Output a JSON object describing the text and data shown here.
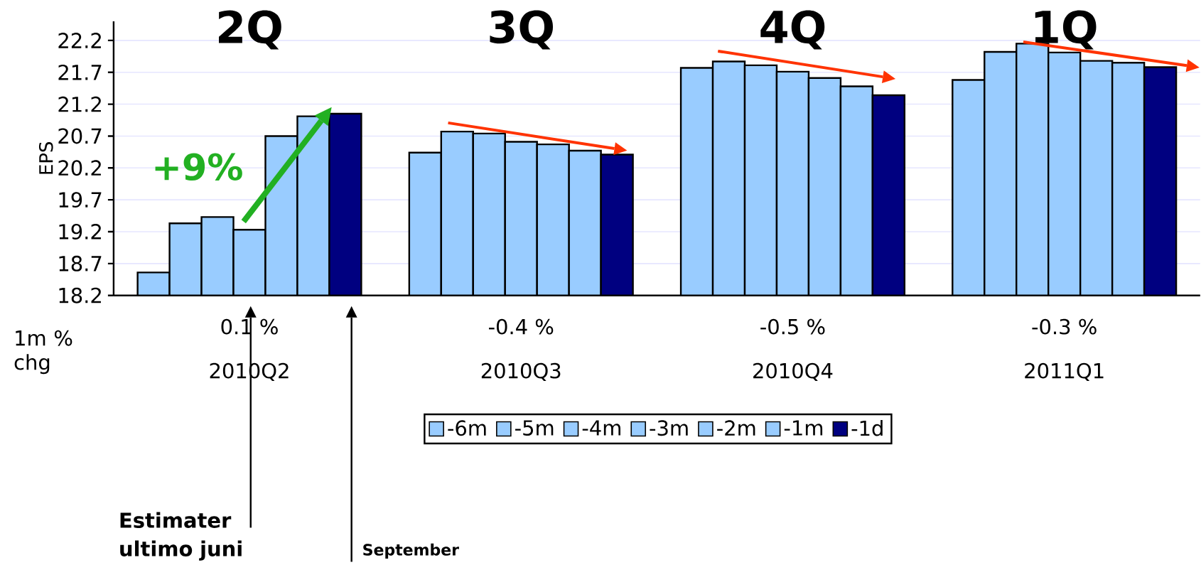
{
  "chart_data": {
    "type": "bar",
    "ylabel": "EPS",
    "categories": [
      "2010Q2",
      "2010Q3",
      "2010Q4",
      "2011Q1"
    ],
    "series": [
      {
        "name": "-6m",
        "color": "#99ccff",
        "values": [
          18.56,
          20.44,
          21.77,
          21.58
        ]
      },
      {
        "name": "-5m",
        "color": "#99ccff",
        "values": [
          19.33,
          20.77,
          21.87,
          22.02
        ]
      },
      {
        "name": "-4m",
        "color": "#99ccff",
        "values": [
          19.43,
          20.74,
          21.81,
          22.15
        ]
      },
      {
        "name": "-3m",
        "color": "#99ccff",
        "values": [
          19.23,
          20.61,
          21.71,
          22.01
        ]
      },
      {
        "name": "-2m",
        "color": "#99ccff",
        "values": [
          20.7,
          20.57,
          21.61,
          21.88
        ]
      },
      {
        "name": "-1m",
        "color": "#99ccff",
        "values": [
          21.01,
          20.47,
          21.48,
          21.85
        ]
      },
      {
        "name": "-1d",
        "color": "#000080",
        "values": [
          21.05,
          20.41,
          21.34,
          21.78
        ]
      }
    ],
    "ylim": [
      18.2,
      22.5
    ],
    "yticks": [
      18.2,
      18.7,
      19.2,
      19.7,
      20.2,
      20.7,
      21.2,
      21.7,
      22.2
    ],
    "grid": "y",
    "legend": "bottom",
    "annotations": [
      "2Q",
      "3Q",
      "4Q",
      "1Q",
      "0.1 %",
      "-0.4 %",
      "-0.5 %",
      "-0.3 %",
      "1m % chg",
      "+9%",
      "Estimater ultimo juni",
      "September"
    ]
  }
}
